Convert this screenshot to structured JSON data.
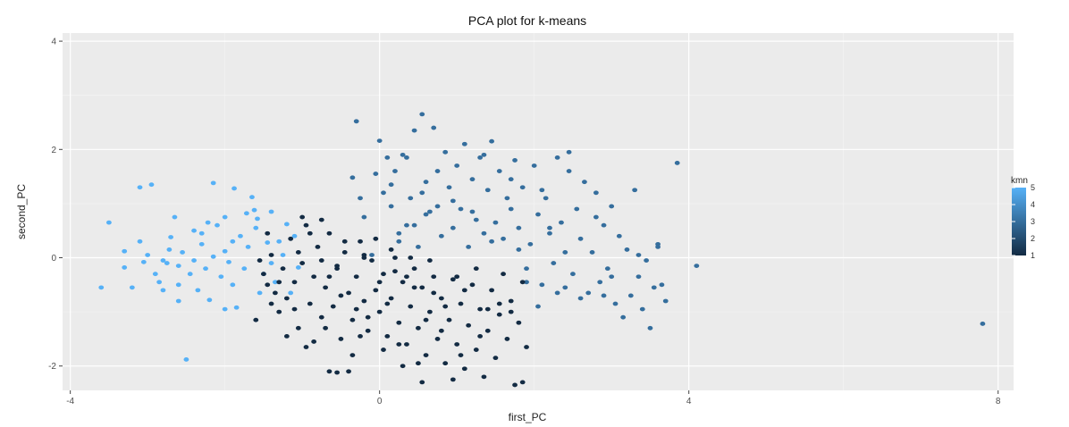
{
  "chart_data": {
    "type": "scatter",
    "title": "PCA plot for k-means",
    "xlabel": "first_PC",
    "ylabel": "second_PC",
    "xlim": [
      -4.1,
      8.2
    ],
    "ylim": [
      -2.45,
      4.15
    ],
    "x_ticks": [
      -4,
      0,
      4,
      8
    ],
    "y_ticks": [
      -2,
      0,
      2,
      4
    ],
    "grid": true,
    "legend": {
      "title": "kmn",
      "position": "right",
      "min": 1,
      "max": 5,
      "labels": [
        "5",
        "4",
        "3",
        "2",
        "1"
      ],
      "color_low": "#132B43",
      "color_high": "#56B1F7"
    },
    "series": [
      {
        "color_value": 5,
        "points": [
          [
            -3.6,
            -0.55
          ],
          [
            -3.5,
            0.65
          ],
          [
            -3.3,
            0.12
          ],
          [
            -3.3,
            -0.18
          ],
          [
            -3.2,
            -0.55
          ],
          [
            -3.1,
            0.3
          ],
          [
            -3.1,
            1.3
          ],
          [
            -3.0,
            0.05
          ],
          [
            -2.95,
            1.35
          ],
          [
            -2.9,
            -0.3
          ],
          [
            -2.85,
            -0.45
          ],
          [
            -2.8,
            -0.05
          ],
          [
            -2.8,
            -0.6
          ],
          [
            -2.75,
            -0.1
          ],
          [
            -2.7,
            0.38
          ],
          [
            -2.65,
            0.75
          ],
          [
            -2.6,
            -0.15
          ],
          [
            -2.6,
            -0.5
          ],
          [
            -2.55,
            0.1
          ],
          [
            -2.5,
            -1.88
          ],
          [
            -2.45,
            -0.3
          ],
          [
            -2.4,
            0.5
          ],
          [
            -2.35,
            -0.6
          ],
          [
            -2.3,
            0.25
          ],
          [
            -2.25,
            -0.2
          ],
          [
            -2.2,
            -0.78
          ],
          [
            -2.15,
            0.02
          ],
          [
            -2.1,
            0.6
          ],
          [
            -2.05,
            -0.35
          ],
          [
            -2.0,
            0.75
          ],
          [
            -2.0,
            0.12
          ],
          [
            -1.95,
            -0.08
          ],
          [
            -1.9,
            0.3
          ],
          [
            -1.9,
            -0.5
          ],
          [
            -1.85,
            -0.92
          ],
          [
            -1.8,
            0.4
          ],
          [
            -1.75,
            -0.2
          ],
          [
            -1.7,
            0.2
          ],
          [
            -1.65,
            1.12
          ],
          [
            -1.6,
            0.55
          ],
          [
            -1.55,
            -0.65
          ],
          [
            -1.5,
            -0.3
          ],
          [
            -1.45,
            0.28
          ],
          [
            -1.4,
            0.85
          ],
          [
            -1.4,
            -0.1
          ],
          [
            -1.35,
            -0.45
          ],
          [
            -1.3,
            0.3
          ],
          [
            -1.25,
            0.05
          ],
          [
            -1.2,
            0.62
          ],
          [
            -1.15,
            -0.65
          ],
          [
            -1.1,
            0.4
          ],
          [
            -1.05,
            -0.18
          ],
          [
            -2.3,
            0.45
          ],
          [
            -2.15,
            1.38
          ],
          [
            -2.0,
            -0.95
          ],
          [
            -1.88,
            1.28
          ],
          [
            -1.72,
            0.82
          ],
          [
            -1.62,
            0.88
          ],
          [
            -1.58,
            0.72
          ],
          [
            -2.6,
            -0.8
          ],
          [
            -2.4,
            -0.05
          ],
          [
            -3.05,
            -0.08
          ],
          [
            -2.72,
            0.15
          ],
          [
            -2.22,
            0.65
          ]
        ]
      },
      {
        "color_value": 3,
        "points": [
          [
            -0.35,
            1.48
          ],
          [
            -0.3,
            2.52
          ],
          [
            -0.25,
            1.1
          ],
          [
            -0.2,
            0.75
          ],
          [
            -0.1,
            0.05
          ],
          [
            -0.05,
            1.55
          ],
          [
            0.0,
            2.16
          ],
          [
            0.05,
            1.2
          ],
          [
            0.1,
            1.85
          ],
          [
            0.15,
            0.95
          ],
          [
            0.2,
            1.6
          ],
          [
            0.25,
            0.3
          ],
          [
            0.3,
            1.9
          ],
          [
            0.35,
            0.6
          ],
          [
            0.4,
            1.1
          ],
          [
            0.45,
            2.35
          ],
          [
            0.5,
            0.2
          ],
          [
            0.55,
            2.65
          ],
          [
            0.6,
            1.4
          ],
          [
            0.65,
            0.85
          ],
          [
            0.7,
            2.4
          ],
          [
            0.75,
            1.6
          ],
          [
            0.8,
            0.4
          ],
          [
            0.85,
            1.95
          ],
          [
            0.9,
            1.3
          ],
          [
            0.95,
            0.55
          ],
          [
            1.0,
            1.7
          ],
          [
            1.05,
            0.9
          ],
          [
            1.1,
            2.1
          ],
          [
            1.15,
            0.2
          ],
          [
            1.2,
            1.45
          ],
          [
            1.25,
            0.7
          ],
          [
            1.3,
            1.85
          ],
          [
            1.35,
            0.45
          ],
          [
            1.4,
            1.25
          ],
          [
            1.45,
            2.15
          ],
          [
            1.5,
            0.65
          ],
          [
            1.55,
            1.6
          ],
          [
            1.6,
            0.35
          ],
          [
            1.65,
            1.1
          ],
          [
            1.7,
            0.9
          ],
          [
            1.75,
            1.8
          ],
          [
            1.8,
            0.55
          ],
          [
            1.85,
            1.3
          ],
          [
            1.9,
            -0.2
          ],
          [
            1.95,
            0.25
          ],
          [
            2.0,
            1.7
          ],
          [
            2.05,
            0.8
          ],
          [
            2.1,
            -0.5
          ],
          [
            2.15,
            1.1
          ],
          [
            2.2,
            0.45
          ],
          [
            2.25,
            -0.1
          ],
          [
            2.3,
            1.85
          ],
          [
            2.35,
            0.65
          ],
          [
            2.4,
            0.1
          ],
          [
            2.45,
            1.6
          ],
          [
            2.5,
            -0.3
          ],
          [
            2.55,
            0.9
          ],
          [
            2.6,
            0.35
          ],
          [
            2.65,
            1.4
          ],
          [
            2.7,
            -0.65
          ],
          [
            2.75,
            0.1
          ],
          [
            2.8,
            1.2
          ],
          [
            2.85,
            -0.45
          ],
          [
            2.9,
            0.6
          ],
          [
            2.95,
            -0.2
          ],
          [
            3.0,
            0.95
          ],
          [
            3.05,
            -0.85
          ],
          [
            3.1,
            0.4
          ],
          [
            3.15,
            -1.1
          ],
          [
            3.2,
            0.15
          ],
          [
            3.25,
            -0.7
          ],
          [
            3.3,
            1.25
          ],
          [
            3.35,
            -0.35
          ],
          [
            3.4,
            -0.95
          ],
          [
            3.45,
            -0.05
          ],
          [
            3.5,
            -1.3
          ],
          [
            3.55,
            -0.55
          ],
          [
            3.6,
            0.25
          ],
          [
            3.65,
            -0.5
          ],
          [
            3.7,
            -0.8
          ],
          [
            3.85,
            1.75
          ],
          [
            4.1,
            -0.15
          ],
          [
            7.8,
            -1.22
          ],
          [
            2.3,
            -0.65
          ],
          [
            2.05,
            -0.9
          ],
          [
            1.9,
            -0.45
          ],
          [
            2.6,
            -0.75
          ],
          [
            2.9,
            -0.7
          ],
          [
            1.8,
            0.15
          ],
          [
            2.2,
            0.55
          ],
          [
            0.35,
            1.85
          ],
          [
            0.55,
            1.2
          ],
          [
            0.75,
            0.95
          ],
          [
            1.2,
            0.85
          ],
          [
            1.45,
            0.3
          ],
          [
            0.15,
            1.35
          ],
          [
            0.6,
            0.8
          ],
          [
            0.95,
            1.05
          ],
          [
            1.7,
            1.45
          ],
          [
            2.1,
            1.25
          ],
          [
            2.45,
            1.95
          ],
          [
            2.8,
            0.75
          ],
          [
            1.35,
            1.9
          ],
          [
            0.25,
            0.45
          ],
          [
            0.45,
            0.6
          ],
          [
            3.35,
            0.05
          ],
          [
            3.6,
            0.2
          ],
          [
            2.4,
            -0.55
          ],
          [
            3.0,
            -0.35
          ]
        ]
      },
      {
        "color_value": 1,
        "points": [
          [
            -1.5,
            -0.3
          ],
          [
            -1.45,
            -0.5
          ],
          [
            -1.4,
            0.05
          ],
          [
            -1.35,
            -0.65
          ],
          [
            -1.3,
            -1.0
          ],
          [
            -1.25,
            -0.2
          ],
          [
            -1.2,
            -0.75
          ],
          [
            -1.15,
            0.35
          ],
          [
            -1.1,
            -0.45
          ],
          [
            -1.05,
            -1.3
          ],
          [
            -1.0,
            -0.1
          ],
          [
            -0.95,
            0.6
          ],
          [
            -0.9,
            -0.85
          ],
          [
            -0.85,
            -0.35
          ],
          [
            -0.8,
            0.2
          ],
          [
            -0.75,
            -1.1
          ],
          [
            -0.7,
            -0.55
          ],
          [
            -0.65,
            0.45
          ],
          [
            -0.6,
            -0.9
          ],
          [
            -0.55,
            -0.2
          ],
          [
            -0.5,
            -1.5
          ],
          [
            -0.45,
            0.1
          ],
          [
            -0.4,
            -0.65
          ],
          [
            -0.35,
            -1.15
          ],
          [
            -0.3,
            -0.35
          ],
          [
            -0.25,
            0.3
          ],
          [
            -0.2,
            -0.8
          ],
          [
            -0.15,
            -1.35
          ],
          [
            -0.1,
            -0.05
          ],
          [
            -0.05,
            -0.6
          ],
          [
            0.0,
            -1.0
          ],
          [
            0.05,
            -0.3
          ],
          [
            0.1,
            -1.45
          ],
          [
            0.15,
            -0.75
          ],
          [
            0.2,
            0.0
          ],
          [
            0.25,
            -1.2
          ],
          [
            0.3,
            -0.45
          ],
          [
            0.35,
            -1.6
          ],
          [
            0.4,
            -0.9
          ],
          [
            0.45,
            -0.2
          ],
          [
            0.5,
            -1.3
          ],
          [
            0.55,
            -0.55
          ],
          [
            0.6,
            -1.8
          ],
          [
            0.65,
            -1.0
          ],
          [
            0.7,
            -0.35
          ],
          [
            0.75,
            -1.5
          ],
          [
            0.8,
            -0.75
          ],
          [
            0.85,
            -1.95
          ],
          [
            0.9,
            -1.15
          ],
          [
            0.95,
            -0.4
          ],
          [
            1.0,
            -1.6
          ],
          [
            1.05,
            -0.85
          ],
          [
            1.1,
            -2.05
          ],
          [
            1.15,
            -1.25
          ],
          [
            1.2,
            -0.5
          ],
          [
            1.25,
            -1.7
          ],
          [
            1.3,
            -0.95
          ],
          [
            1.35,
            -2.2
          ],
          [
            1.4,
            -1.35
          ],
          [
            1.45,
            -0.6
          ],
          [
            1.5,
            -1.85
          ],
          [
            1.55,
            -1.05
          ],
          [
            1.6,
            -0.3
          ],
          [
            1.65,
            -1.5
          ],
          [
            1.7,
            -0.8
          ],
          [
            1.75,
            -2.35
          ],
          [
            1.8,
            -1.2
          ],
          [
            1.85,
            -0.45
          ],
          [
            1.9,
            -1.65
          ],
          [
            -1.6,
            -1.15
          ],
          [
            -0.65,
            -2.1
          ],
          [
            -0.55,
            -2.12
          ],
          [
            -0.4,
            -2.1
          ],
          [
            0.05,
            -1.7
          ],
          [
            0.3,
            -2.0
          ],
          [
            0.55,
            -2.3
          ],
          [
            0.95,
            -2.25
          ],
          [
            1.85,
            -2.3
          ],
          [
            0.4,
            0.0
          ],
          [
            -0.2,
            0.05
          ],
          [
            -0.05,
            0.35
          ],
          [
            -1.0,
            0.75
          ],
          [
            -0.75,
            0.7
          ],
          [
            -0.9,
            0.45
          ],
          [
            -1.45,
            0.45
          ],
          [
            -0.55,
            -0.15
          ],
          [
            0.2,
            -0.25
          ],
          [
            0.45,
            -0.55
          ],
          [
            0.7,
            -0.65
          ],
          [
            1.0,
            -0.35
          ],
          [
            1.25,
            -0.2
          ],
          [
            1.4,
            -0.95
          ],
          [
            1.55,
            -0.85
          ],
          [
            1.7,
            -1.0
          ],
          [
            0.85,
            -0.9
          ],
          [
            0.6,
            -1.15
          ],
          [
            -0.25,
            -1.45
          ],
          [
            -0.85,
            -1.55
          ],
          [
            -1.2,
            -1.45
          ],
          [
            -0.3,
            -0.95
          ],
          [
            0.1,
            -0.85
          ],
          [
            0.35,
            -0.35
          ],
          [
            -0.65,
            -0.35
          ],
          [
            -1.3,
            -0.45
          ],
          [
            -1.05,
            0.1
          ],
          [
            -0.45,
            0.3
          ],
          [
            0.15,
            0.15
          ],
          [
            -0.75,
            -0.05
          ],
          [
            0.65,
            -0.05
          ],
          [
            -0.15,
            -1.1
          ],
          [
            0.25,
            -1.6
          ],
          [
            1.1,
            -0.6
          ],
          [
            1.3,
            -1.45
          ],
          [
            0.5,
            -1.95
          ],
          [
            -0.95,
            -1.65
          ],
          [
            -1.55,
            -0.05
          ],
          [
            -1.1,
            -0.95
          ],
          [
            -0.5,
            -0.7
          ],
          [
            0.0,
            -0.45
          ],
          [
            0.8,
            -1.35
          ],
          [
            1.05,
            -1.8
          ],
          [
            -0.35,
            -1.8
          ],
          [
            -0.7,
            -1.3
          ],
          [
            -1.4,
            -0.85
          ],
          [
            -0.2,
            0.0
          ]
        ]
      }
    ]
  }
}
